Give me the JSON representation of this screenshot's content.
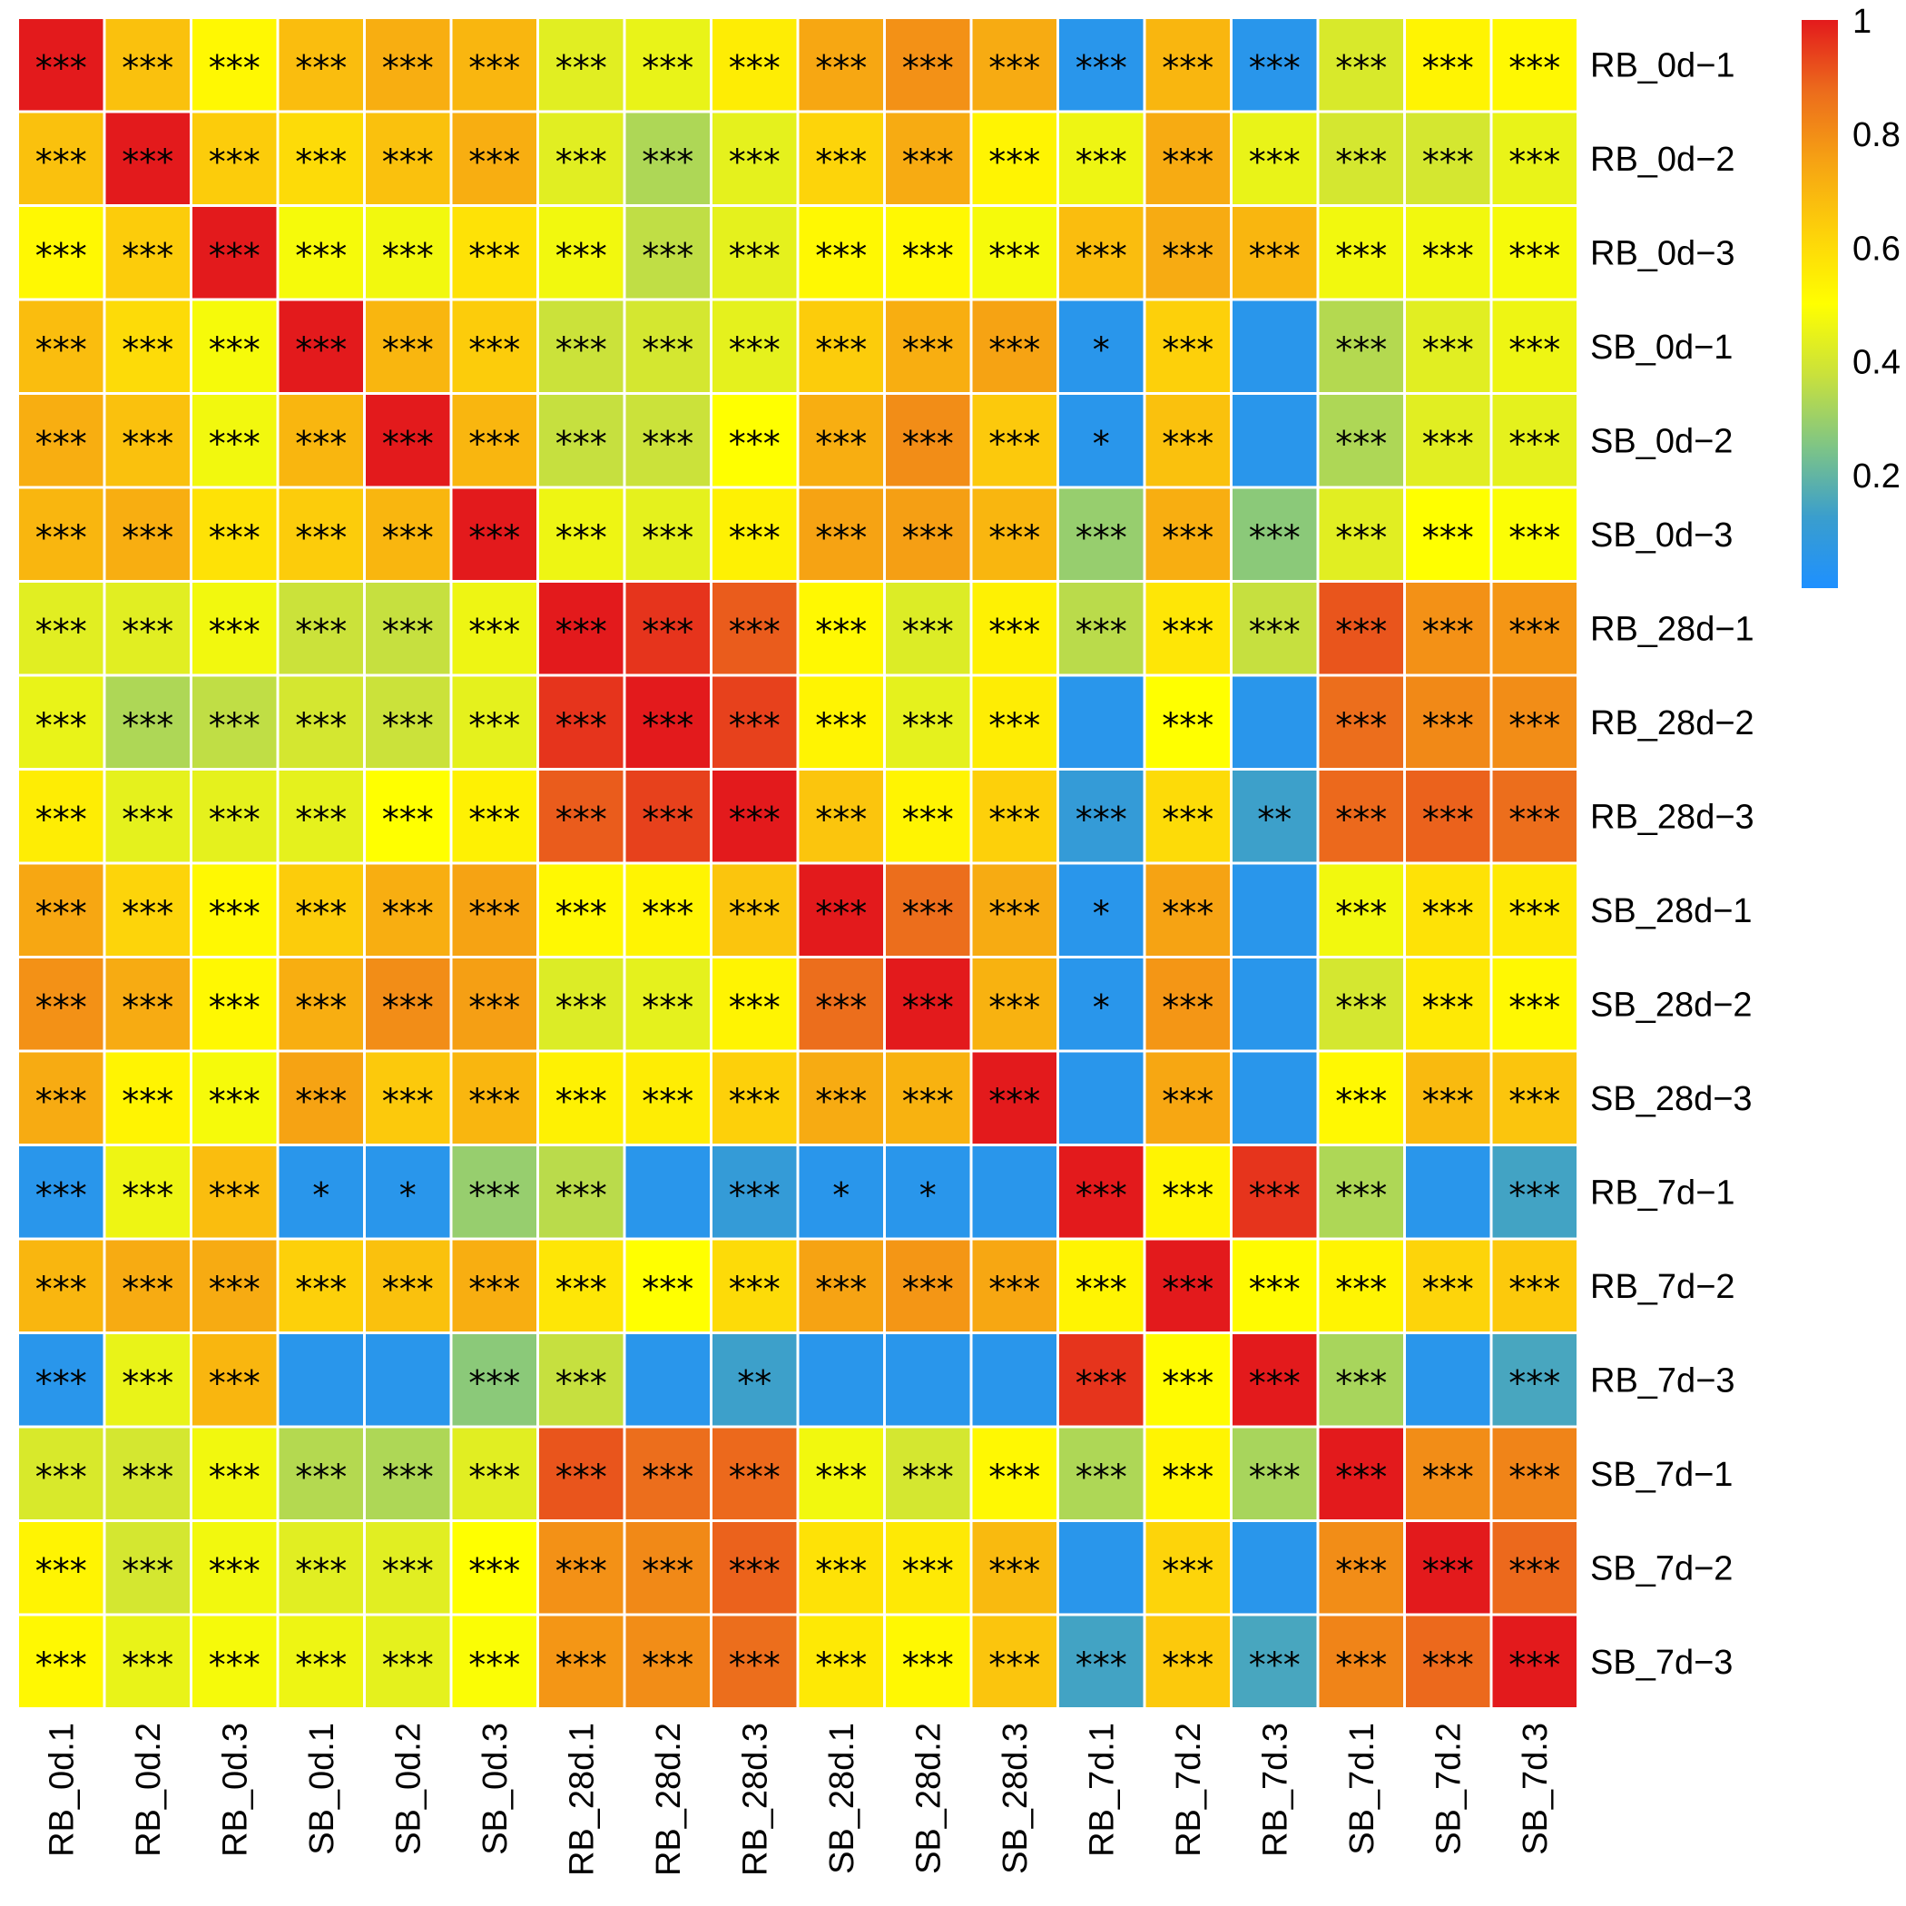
{
  "chart_data": {
    "type": "heatmap",
    "title": "",
    "row_labels": [
      "RB_0d−1",
      "RB_0d−2",
      "RB_0d−3",
      "SB_0d−1",
      "SB_0d−2",
      "SB_0d−3",
      "RB_28d−1",
      "RB_28d−2",
      "RB_28d−3",
      "SB_28d−1",
      "SB_28d−2",
      "SB_28d−3",
      "RB_7d−1",
      "RB_7d−2",
      "RB_7d−3",
      "SB_7d−1",
      "SB_7d−2",
      "SB_7d−3"
    ],
    "col_labels": [
      "RB_0d.1",
      "RB_0d.2",
      "RB_0d.3",
      "SB_0d.1",
      "SB_0d.2",
      "SB_0d.3",
      "RB_28d.1",
      "RB_28d.2",
      "RB_28d.3",
      "SB_28d.1",
      "SB_28d.2",
      "SB_28d.3",
      "RB_7d.1",
      "RB_7d.2",
      "RB_7d.3",
      "SB_7d.1",
      "SB_7d.2",
      "SB_7d.3"
    ],
    "values": [
      [
        1.0,
        0.67,
        0.52,
        0.68,
        0.72,
        0.7,
        0.43,
        0.45,
        0.55,
        0.74,
        0.79,
        0.73,
        0.05,
        0.7,
        0.05,
        0.41,
        0.53,
        0.52
      ],
      [
        0.67,
        1.0,
        0.64,
        0.6,
        0.67,
        0.72,
        0.43,
        0.33,
        0.44,
        0.62,
        0.73,
        0.53,
        0.46,
        0.73,
        0.45,
        0.4,
        0.4,
        0.45
      ],
      [
        0.52,
        0.64,
        1.0,
        0.48,
        0.47,
        0.58,
        0.47,
        0.36,
        0.44,
        0.52,
        0.52,
        0.48,
        0.68,
        0.73,
        0.7,
        0.47,
        0.47,
        0.48
      ],
      [
        0.68,
        0.6,
        0.48,
        1.0,
        0.7,
        0.64,
        0.38,
        0.4,
        0.44,
        0.64,
        0.72,
        0.75,
        0.05,
        0.63,
        0.05,
        0.34,
        0.43,
        0.46
      ],
      [
        0.72,
        0.67,
        0.47,
        0.7,
        1.0,
        0.7,
        0.37,
        0.38,
        0.5,
        0.72,
        0.8,
        0.65,
        0.05,
        0.67,
        0.05,
        0.33,
        0.43,
        0.44
      ],
      [
        0.7,
        0.72,
        0.58,
        0.64,
        0.7,
        1.0,
        0.46,
        0.44,
        0.54,
        0.75,
        0.76,
        0.7,
        0.29,
        0.72,
        0.27,
        0.43,
        0.5,
        0.49
      ],
      [
        0.43,
        0.43,
        0.47,
        0.38,
        0.37,
        0.46,
        1.0,
        0.96,
        0.9,
        0.52,
        0.42,
        0.54,
        0.35,
        0.57,
        0.37,
        0.91,
        0.79,
        0.78
      ],
      [
        0.45,
        0.33,
        0.36,
        0.4,
        0.38,
        0.44,
        0.96,
        1.0,
        0.94,
        0.53,
        0.44,
        0.55,
        0.05,
        0.5,
        0.05,
        0.87,
        0.81,
        0.8
      ],
      [
        0.55,
        0.44,
        0.44,
        0.44,
        0.5,
        0.54,
        0.9,
        0.94,
        1.0,
        0.66,
        0.53,
        0.63,
        0.1,
        0.6,
        0.13,
        0.88,
        0.89,
        0.87
      ],
      [
        0.74,
        0.62,
        0.52,
        0.64,
        0.72,
        0.75,
        0.52,
        0.53,
        0.66,
        1.0,
        0.87,
        0.73,
        0.05,
        0.75,
        0.05,
        0.47,
        0.58,
        0.56
      ],
      [
        0.79,
        0.73,
        0.52,
        0.72,
        0.8,
        0.76,
        0.42,
        0.44,
        0.53,
        0.87,
        1.0,
        0.71,
        0.05,
        0.78,
        0.05,
        0.4,
        0.56,
        0.52
      ],
      [
        0.73,
        0.53,
        0.48,
        0.75,
        0.65,
        0.7,
        0.54,
        0.55,
        0.63,
        0.73,
        0.71,
        1.0,
        0.05,
        0.74,
        0.05,
        0.52,
        0.69,
        0.66
      ],
      [
        0.05,
        0.46,
        0.68,
        0.05,
        0.05,
        0.29,
        0.35,
        0.05,
        0.1,
        0.05,
        0.05,
        0.05,
        1.0,
        0.53,
        0.96,
        0.33,
        0.05,
        0.14
      ],
      [
        0.7,
        0.73,
        0.73,
        0.63,
        0.67,
        0.72,
        0.57,
        0.5,
        0.6,
        0.75,
        0.78,
        0.74,
        0.53,
        1.0,
        0.51,
        0.53,
        0.62,
        0.65
      ],
      [
        0.05,
        0.45,
        0.7,
        0.05,
        0.05,
        0.27,
        0.37,
        0.05,
        0.13,
        0.05,
        0.05,
        0.05,
        0.96,
        0.51,
        1.0,
        0.32,
        0.05,
        0.15
      ],
      [
        0.41,
        0.4,
        0.47,
        0.34,
        0.33,
        0.43,
        0.91,
        0.87,
        0.88,
        0.47,
        0.4,
        0.52,
        0.33,
        0.53,
        0.32,
        1.0,
        0.8,
        0.82
      ],
      [
        0.53,
        0.4,
        0.47,
        0.43,
        0.43,
        0.5,
        0.79,
        0.81,
        0.89,
        0.58,
        0.56,
        0.69,
        0.05,
        0.62,
        0.05,
        0.8,
        1.0,
        0.88
      ],
      [
        0.52,
        0.45,
        0.48,
        0.46,
        0.44,
        0.49,
        0.78,
        0.8,
        0.87,
        0.56,
        0.52,
        0.66,
        0.14,
        0.65,
        0.15,
        0.82,
        0.88,
        1.0
      ]
    ],
    "significance": [
      [
        "***",
        "***",
        "***",
        "***",
        "***",
        "***",
        "***",
        "***",
        "***",
        "***",
        "***",
        "***",
        "***",
        "***",
        "***",
        "***",
        "***",
        "***"
      ],
      [
        "***",
        "***",
        "***",
        "***",
        "***",
        "***",
        "***",
        "***",
        "***",
        "***",
        "***",
        "***",
        "***",
        "***",
        "***",
        "***",
        "***",
        "***"
      ],
      [
        "***",
        "***",
        "***",
        "***",
        "***",
        "***",
        "***",
        "***",
        "***",
        "***",
        "***",
        "***",
        "***",
        "***",
        "***",
        "***",
        "***",
        "***"
      ],
      [
        "***",
        "***",
        "***",
        "***",
        "***",
        "***",
        "***",
        "***",
        "***",
        "***",
        "***",
        "***",
        "*",
        "***",
        "",
        "***",
        "***",
        "***"
      ],
      [
        "***",
        "***",
        "***",
        "***",
        "***",
        "***",
        "***",
        "***",
        "***",
        "***",
        "***",
        "***",
        "*",
        "***",
        "",
        "***",
        "***",
        "***"
      ],
      [
        "***",
        "***",
        "***",
        "***",
        "***",
        "***",
        "***",
        "***",
        "***",
        "***",
        "***",
        "***",
        "***",
        "***",
        "***",
        "***",
        "***",
        "***"
      ],
      [
        "***",
        "***",
        "***",
        "***",
        "***",
        "***",
        "***",
        "***",
        "***",
        "***",
        "***",
        "***",
        "***",
        "***",
        "***",
        "***",
        "***",
        "***"
      ],
      [
        "***",
        "***",
        "***",
        "***",
        "***",
        "***",
        "***",
        "***",
        "***",
        "***",
        "***",
        "***",
        "",
        "***",
        "",
        "***",
        "***",
        "***"
      ],
      [
        "***",
        "***",
        "***",
        "***",
        "***",
        "***",
        "***",
        "***",
        "***",
        "***",
        "***",
        "***",
        "***",
        "***",
        "**",
        "***",
        "***",
        "***"
      ],
      [
        "***",
        "***",
        "***",
        "***",
        "***",
        "***",
        "***",
        "***",
        "***",
        "***",
        "***",
        "***",
        "*",
        "***",
        "",
        "***",
        "***",
        "***"
      ],
      [
        "***",
        "***",
        "***",
        "***",
        "***",
        "***",
        "***",
        "***",
        "***",
        "***",
        "***",
        "***",
        "*",
        "***",
        "",
        "***",
        "***",
        "***"
      ],
      [
        "***",
        "***",
        "***",
        "***",
        "***",
        "***",
        "***",
        "***",
        "***",
        "***",
        "***",
        "***",
        "",
        "***",
        "",
        "***",
        "***",
        "***"
      ],
      [
        "***",
        "***",
        "***",
        "*",
        "*",
        "***",
        "***",
        "",
        "***",
        "*",
        "*",
        "",
        "***",
        "***",
        "***",
        "***",
        "",
        "***"
      ],
      [
        "***",
        "***",
        "***",
        "***",
        "***",
        "***",
        "***",
        "***",
        "***",
        "***",
        "***",
        "***",
        "***",
        "***",
        "***",
        "***",
        "***",
        "***"
      ],
      [
        "***",
        "***",
        "***",
        "",
        "",
        "***",
        "***",
        "",
        "**",
        "",
        "",
        "",
        "***",
        "***",
        "***",
        "***",
        "",
        "***"
      ],
      [
        "***",
        "***",
        "***",
        "***",
        "***",
        "***",
        "***",
        "***",
        "***",
        "***",
        "***",
        "***",
        "***",
        "***",
        "***",
        "***",
        "***",
        "***"
      ],
      [
        "***",
        "***",
        "***",
        "***",
        "***",
        "***",
        "***",
        "***",
        "***",
        "***",
        "***",
        "***",
        "",
        "***",
        "",
        "***",
        "***",
        "***"
      ],
      [
        "***",
        "***",
        "***",
        "***",
        "***",
        "***",
        "***",
        "***",
        "***",
        "***",
        "***",
        "***",
        "***",
        "***",
        "***",
        "***",
        "***",
        "***"
      ]
    ],
    "colorbar": {
      "ticks": [
        "1",
        "0.8",
        "0.6",
        "0.4",
        "0.2"
      ],
      "tick_values": [
        1.0,
        0.8,
        0.6,
        0.4,
        0.2
      ],
      "range": [
        0.0,
        1.0
      ],
      "colors": [
        "#1e90ff",
        "#3a9ecd",
        "#7fc585",
        "#c9e13c",
        "#ffff00",
        "#fdd20a",
        "#f6a313",
        "#ec6c1c",
        "#e31a1c"
      ]
    }
  }
}
